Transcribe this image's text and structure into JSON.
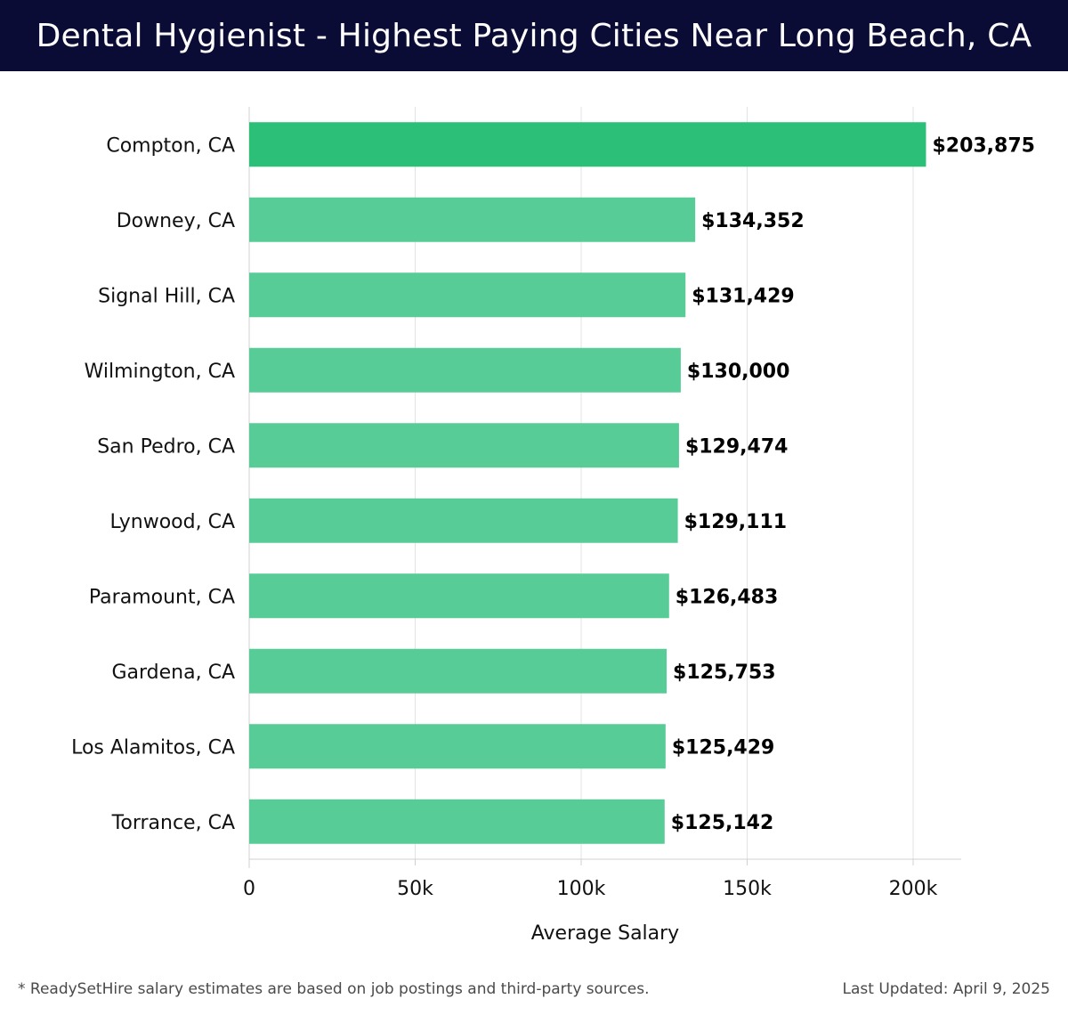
{
  "header": {
    "title": "Dental Hygienist - Highest Paying Cities Near Long Beach, CA"
  },
  "colors": {
    "top_bar": "#2bbf78",
    "bar": "#58cc96",
    "header_bg": "#0b0c35"
  },
  "chart_data": {
    "type": "bar",
    "orientation": "horizontal",
    "title": "Dental Hygienist - Highest Paying Cities Near Long Beach, CA",
    "categories": [
      "Compton, CA",
      "Downey, CA",
      "Signal Hill, CA",
      "Wilmington, CA",
      "San Pedro, CA",
      "Lynwood, CA",
      "Paramount, CA",
      "Gardena, CA",
      "Los Alamitos, CA",
      "Torrance, CA"
    ],
    "values": [
      203875,
      134352,
      131429,
      130000,
      129474,
      129111,
      126483,
      125753,
      125429,
      125142
    ],
    "value_labels": [
      "$203,875",
      "$134,352",
      "$131,429",
      "$130,000",
      "$129,474",
      "$129,111",
      "$126,483",
      "$125,753",
      "$125,429",
      "$125,142"
    ],
    "xlabel": "Average Salary",
    "ylabel": "",
    "xlim": [
      0,
      215000
    ],
    "xticks": [
      0,
      50000,
      100000,
      150000,
      200000
    ],
    "xtick_labels": [
      "0",
      "50k",
      "100k",
      "150k",
      "200k"
    ],
    "grid": true
  },
  "footer": {
    "note": "* ReadySetHire salary estimates are based on job postings and third-party sources.",
    "updated_label": "Last Updated:",
    "updated_date": "April 9, 2025"
  }
}
